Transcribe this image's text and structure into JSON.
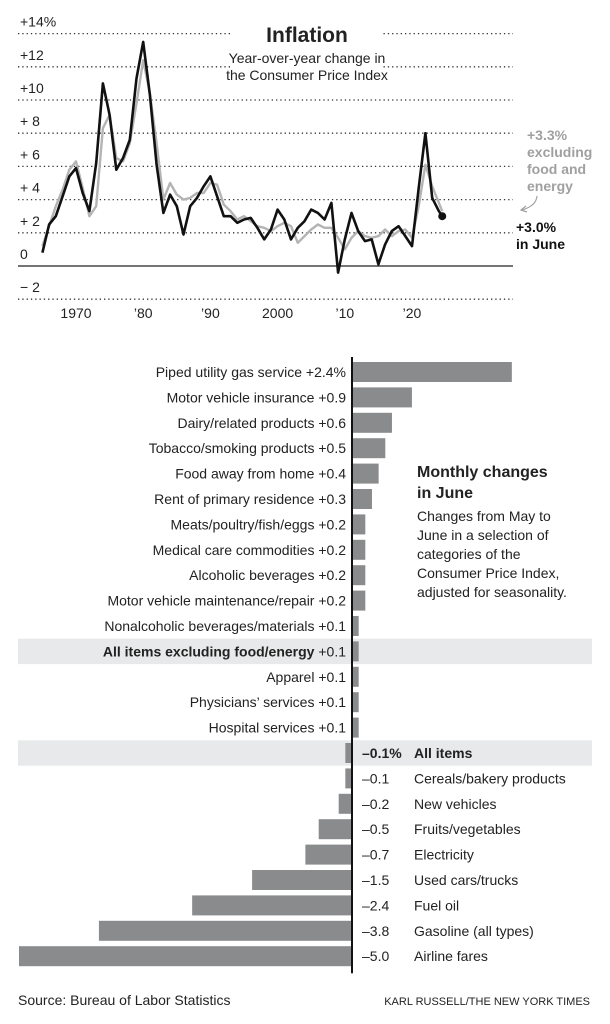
{
  "chart_data": [
    {
      "type": "line",
      "title": "Inflation",
      "subtitle_lines": [
        "Year-over-year change in",
        "the Consumer Price Index"
      ],
      "xlabel": "",
      "ylabel": "",
      "x_range": [
        1965,
        2024.5
      ],
      "ylim": [
        -2,
        14
      ],
      "y_ticks": [
        14,
        12,
        10,
        8,
        6,
        4,
        2,
        0,
        -2
      ],
      "y_tick_labels": [
        "+14%",
        "+12",
        "+10",
        "+ 8",
        "+ 6",
        "+ 4",
        "+ 2",
        "0",
        "− 2"
      ],
      "x_ticks": [
        1970,
        1980,
        1990,
        2000,
        2010,
        2020
      ],
      "x_tick_labels": [
        "1970",
        "’80",
        "’90",
        "2000",
        "’10",
        "’20"
      ],
      "grid": true,
      "series": [
        {
          "name": "All items",
          "color": "#111111",
          "points": [
            [
              1965,
              0.8
            ],
            [
              1966,
              2.5
            ],
            [
              1967,
              3.0
            ],
            [
              1968,
              4.2
            ],
            [
              1969,
              5.4
            ],
            [
              1970,
              5.9
            ],
            [
              1971,
              4.4
            ],
            [
              1972,
              3.3
            ],
            [
              1973,
              6.2
            ],
            [
              1974,
              11.0
            ],
            [
              1975,
              9.1
            ],
            [
              1976,
              5.8
            ],
            [
              1977,
              6.5
            ],
            [
              1978,
              7.6
            ],
            [
              1979,
              11.3
            ],
            [
              1980,
              13.5
            ],
            [
              1981,
              10.3
            ],
            [
              1982,
              6.1
            ],
            [
              1983,
              3.2
            ],
            [
              1984,
              4.3
            ],
            [
              1985,
              3.6
            ],
            [
              1986,
              1.9
            ],
            [
              1987,
              3.6
            ],
            [
              1988,
              4.1
            ],
            [
              1989,
              4.8
            ],
            [
              1990,
              5.4
            ],
            [
              1991,
              4.2
            ],
            [
              1992,
              3.0
            ],
            [
              1993,
              3.0
            ],
            [
              1994,
              2.6
            ],
            [
              1995,
              2.8
            ],
            [
              1996,
              2.9
            ],
            [
              1997,
              2.3
            ],
            [
              1998,
              1.6
            ],
            [
              1999,
              2.2
            ],
            [
              2000,
              3.4
            ],
            [
              2001,
              2.8
            ],
            [
              2002,
              1.6
            ],
            [
              2003,
              2.3
            ],
            [
              2004,
              2.7
            ],
            [
              2005,
              3.4
            ],
            [
              2006,
              3.2
            ],
            [
              2007,
              2.8
            ],
            [
              2008,
              3.8
            ],
            [
              2009,
              -0.4
            ],
            [
              2010,
              1.6
            ],
            [
              2011,
              3.2
            ],
            [
              2012,
              2.1
            ],
            [
              2013,
              1.5
            ],
            [
              2014,
              1.6
            ],
            [
              2015,
              0.1
            ],
            [
              2016,
              1.3
            ],
            [
              2017,
              2.1
            ],
            [
              2018,
              2.4
            ],
            [
              2019,
              1.8
            ],
            [
              2020,
              1.2
            ],
            [
              2021,
              4.7
            ],
            [
              2022,
              8.0
            ],
            [
              2023,
              4.1
            ],
            [
              2024,
              3.3
            ],
            [
              2024.5,
              3.0
            ]
          ]
        },
        {
          "name": "All items excluding food and energy",
          "color": "#b4b4b4",
          "points": [
            [
              1965,
              1.2
            ],
            [
              1966,
              2.4
            ],
            [
              1967,
              3.6
            ],
            [
              1968,
              4.6
            ],
            [
              1969,
              5.8
            ],
            [
              1970,
              6.3
            ],
            [
              1971,
              4.7
            ],
            [
              1972,
              3.0
            ],
            [
              1973,
              3.6
            ],
            [
              1974,
              8.3
            ],
            [
              1975,
              9.1
            ],
            [
              1976,
              6.5
            ],
            [
              1977,
              6.3
            ],
            [
              1978,
              7.4
            ],
            [
              1979,
              9.8
            ],
            [
              1980,
              12.4
            ],
            [
              1981,
              10.4
            ],
            [
              1982,
              7.4
            ],
            [
              1983,
              4.0
            ],
            [
              1984,
              5.0
            ],
            [
              1985,
              4.3
            ],
            [
              1986,
              4.0
            ],
            [
              1987,
              4.1
            ],
            [
              1988,
              4.4
            ],
            [
              1989,
              4.4
            ],
            [
              1990,
              5.0
            ],
            [
              1991,
              4.9
            ],
            [
              1992,
              3.7
            ],
            [
              1993,
              3.3
            ],
            [
              1994,
              2.8
            ],
            [
              1995,
              3.0
            ],
            [
              1996,
              2.7
            ],
            [
              1997,
              2.4
            ],
            [
              1998,
              2.3
            ],
            [
              1999,
              2.1
            ],
            [
              2000,
              2.4
            ],
            [
              2001,
              2.6
            ],
            [
              2002,
              2.4
            ],
            [
              2003,
              1.4
            ],
            [
              2004,
              1.8
            ],
            [
              2005,
              2.2
            ],
            [
              2006,
              2.5
            ],
            [
              2007,
              2.3
            ],
            [
              2008,
              2.3
            ],
            [
              2009,
              1.7
            ],
            [
              2010,
              1.0
            ],
            [
              2011,
              1.7
            ],
            [
              2012,
              2.1
            ],
            [
              2013,
              1.8
            ],
            [
              2014,
              1.7
            ],
            [
              2015,
              1.8
            ],
            [
              2016,
              2.2
            ],
            [
              2017,
              1.8
            ],
            [
              2018,
              2.1
            ],
            [
              2019,
              2.2
            ],
            [
              2020,
              1.7
            ],
            [
              2021,
              3.6
            ],
            [
              2022,
              6.1
            ],
            [
              2023,
              4.8
            ],
            [
              2024,
              3.8
            ],
            [
              2024.5,
              3.3
            ]
          ]
        }
      ],
      "annotations": [
        {
          "text_lines": [
            "+3.3%",
            "excluding",
            "food and",
            "energy"
          ],
          "color": "#a0a0a0"
        },
        {
          "text_lines": [
            "+3.0%",
            "in June"
          ],
          "color": "#111111"
        }
      ]
    },
    {
      "type": "bar",
      "orientation": "horizontal",
      "title": "Monthly changes in June",
      "description_lines": [
        "Changes from May to",
        "June in a selection of",
        "categories of the",
        "Consumer Price Index,",
        "adjusted for seasonality."
      ],
      "bar_color": "#8a8b8d",
      "highlight_color": "#e8e9ea",
      "unit": "%",
      "categories": [
        {
          "label": "Piped utility gas service",
          "value": 2.4,
          "value_label": "+2.4%",
          "bold": false,
          "highlight": false
        },
        {
          "label": "Motor vehicle insurance",
          "value": 0.9,
          "value_label": "+0.9",
          "bold": false,
          "highlight": false
        },
        {
          "label": "Dairy/related products",
          "value": 0.6,
          "value_label": "+0.6",
          "bold": false,
          "highlight": false
        },
        {
          "label": "Tobacco/smoking products",
          "value": 0.5,
          "value_label": "+0.5",
          "bold": false,
          "highlight": false
        },
        {
          "label": "Food away from home",
          "value": 0.4,
          "value_label": "+0.4",
          "bold": false,
          "highlight": false
        },
        {
          "label": "Rent of primary residence",
          "value": 0.3,
          "value_label": "+0.3",
          "bold": false,
          "highlight": false
        },
        {
          "label": "Meats/poultry/fish/eggs",
          "value": 0.2,
          "value_label": "+0.2",
          "bold": false,
          "highlight": false
        },
        {
          "label": "Medical care commodities",
          "value": 0.2,
          "value_label": "+0.2",
          "bold": false,
          "highlight": false
        },
        {
          "label": "Alcoholic beverages",
          "value": 0.2,
          "value_label": "+0.2",
          "bold": false,
          "highlight": false
        },
        {
          "label": "Motor vehicle maintenance/repair",
          "value": 0.2,
          "value_label": "+0.2",
          "bold": false,
          "highlight": false
        },
        {
          "label": "Nonalcoholic beverages/materials",
          "value": 0.1,
          "value_label": "+0.1",
          "bold": false,
          "highlight": false
        },
        {
          "label": "All items excluding food/energy",
          "value": 0.1,
          "value_label": "+0.1",
          "bold": true,
          "highlight": true
        },
        {
          "label": "Apparel",
          "value": 0.1,
          "value_label": "+0.1",
          "bold": false,
          "highlight": false
        },
        {
          "label": "Physicians’ services",
          "value": 0.1,
          "value_label": "+0.1",
          "bold": false,
          "highlight": false
        },
        {
          "label": "Hospital services",
          "value": 0.1,
          "value_label": "+0.1",
          "bold": false,
          "highlight": false
        },
        {
          "label": "All items",
          "value": -0.1,
          "value_label": "–0.1%",
          "bold": true,
          "highlight": true
        },
        {
          "label": "Cereals/bakery products",
          "value": -0.1,
          "value_label": "–0.1",
          "bold": false,
          "highlight": false
        },
        {
          "label": "New vehicles",
          "value": -0.2,
          "value_label": "–0.2",
          "bold": false,
          "highlight": false
        },
        {
          "label": "Fruits/vegetables",
          "value": -0.5,
          "value_label": "–0.5",
          "bold": false,
          "highlight": false
        },
        {
          "label": "Electricity",
          "value": -0.7,
          "value_label": "–0.7",
          "bold": false,
          "highlight": false
        },
        {
          "label": "Used cars/trucks",
          "value": -1.5,
          "value_label": "–1.5",
          "bold": false,
          "highlight": false
        },
        {
          "label": "Fuel oil",
          "value": -2.4,
          "value_label": "–2.4",
          "bold": false,
          "highlight": false
        },
        {
          "label": "Gasoline (all types)",
          "value": -3.8,
          "value_label": "–3.8",
          "bold": false,
          "highlight": false
        },
        {
          "label": "Airline fares",
          "value": -5.0,
          "value_label": "–5.0",
          "bold": false,
          "highlight": false
        }
      ],
      "xlim": [
        -5.0,
        2.4
      ]
    }
  ],
  "footer": {
    "source": "Source: Bureau of Labor Statistics",
    "credit": "KARL RUSSELL/THE NEW YORK TIMES"
  }
}
